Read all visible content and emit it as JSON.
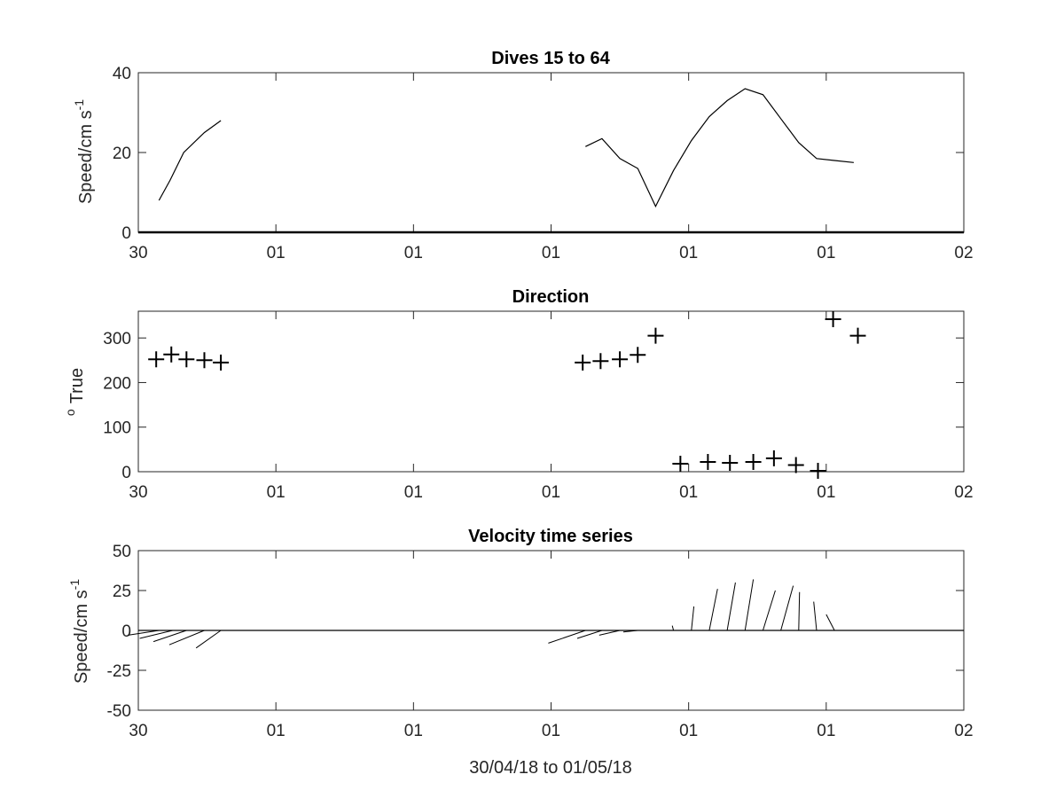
{
  "chart_data": [
    {
      "type": "line",
      "title": "Dives 15 to 64",
      "ylabel": "Speed/cm s",
      "ylabel_superscript": "-1",
      "xlabel": "",
      "ylim": [
        0,
        40
      ],
      "yticks": [
        0,
        20,
        40
      ],
      "xlim": [
        0,
        6
      ],
      "xticks": [
        0,
        1,
        2,
        3,
        4,
        5,
        6
      ],
      "xticklabels": [
        "30",
        "01",
        "01",
        "01",
        "01",
        "01",
        "02"
      ],
      "series": [
        {
          "x": [
            0.15,
            0.23,
            0.33,
            0.48,
            0.6
          ],
          "y": [
            8,
            13,
            20,
            25,
            28
          ]
        },
        {
          "x": [
            3.25,
            3.37,
            3.5,
            3.63,
            3.76,
            3.89,
            4.02,
            4.15,
            4.28,
            4.41,
            4.54,
            4.67,
            4.8,
            4.93,
            5.06,
            5.2
          ],
          "y": [
            21.5,
            23.5,
            18.5,
            16,
            6.5,
            15.5,
            23,
            29,
            33,
            36,
            34.5,
            28.5,
            22.5,
            18.5,
            18,
            17.5
          ]
        }
      ]
    },
    {
      "type": "scatter",
      "title": "Direction",
      "ylabel": "True",
      "ylabel_prefix_superscript": "o",
      "xlabel": "",
      "ylim": [
        0,
        360
      ],
      "yticks": [
        0,
        100,
        200,
        300
      ],
      "xlim": [
        0,
        6
      ],
      "xticks": [
        0,
        1,
        2,
        3,
        4,
        5,
        6
      ],
      "xticklabels": [
        "30",
        "01",
        "01",
        "01",
        "01",
        "01",
        "02"
      ],
      "marker": "+",
      "x": [
        0.13,
        0.24,
        0.35,
        0.48,
        0.6,
        3.23,
        3.36,
        3.5,
        3.63,
        3.76,
        3.94,
        4.14,
        4.3,
        4.47,
        4.62,
        4.78,
        4.94,
        5.05,
        5.23
      ],
      "y": [
        252,
        263,
        252,
        250,
        245,
        245,
        248,
        252,
        262,
        305,
        18,
        22,
        20,
        22,
        30,
        15,
        2,
        342,
        305
      ]
    },
    {
      "type": "line",
      "subtype": "stick",
      "title": "Velocity time series",
      "ylabel": "Speed/cm s",
      "ylabel_superscript": "-1",
      "xlabel": "30/04/18 to 01/05/18",
      "ylim": [
        -50,
        50
      ],
      "yticks": [
        -50,
        -25,
        0,
        25,
        50
      ],
      "xlim": [
        0,
        6
      ],
      "xticks": [
        0,
        1,
        2,
        3,
        4,
        5,
        6
      ],
      "xticklabels": [
        "30",
        "01",
        "01",
        "01",
        "01",
        "01",
        "02"
      ],
      "baseline": 0,
      "sticks": [
        {
          "x": 0.15,
          "u": -0.75,
          "v": -3
        },
        {
          "x": 0.25,
          "u": -0.8,
          "v": -5
        },
        {
          "x": 0.35,
          "u": -0.8,
          "v": -7
        },
        {
          "x": 0.48,
          "u": -0.85,
          "v": -9
        },
        {
          "x": 0.6,
          "u": -0.6,
          "v": -11
        },
        {
          "x": 3.25,
          "u": -0.9,
          "v": -8
        },
        {
          "x": 3.37,
          "u": -0.6,
          "v": -5
        },
        {
          "x": 3.5,
          "u": -0.5,
          "v": -3
        },
        {
          "x": 3.63,
          "u": -0.35,
          "v": -1
        },
        {
          "x": 3.76,
          "u": 0.05,
          "v": 0
        },
        {
          "x": 3.89,
          "u": -0.03,
          "v": 3
        },
        {
          "x": 4.02,
          "u": 0.06,
          "v": 15
        },
        {
          "x": 4.15,
          "u": 0.2,
          "v": 26
        },
        {
          "x": 4.28,
          "u": 0.2,
          "v": 30
        },
        {
          "x": 4.41,
          "u": 0.2,
          "v": 32
        },
        {
          "x": 4.54,
          "u": 0.3,
          "v": 25
        },
        {
          "x": 4.67,
          "u": 0.3,
          "v": 28
        },
        {
          "x": 4.8,
          "u": 0.02,
          "v": 24
        },
        {
          "x": 4.93,
          "u": -0.07,
          "v": 18
        },
        {
          "x": 5.06,
          "u": -0.2,
          "v": 10
        }
      ]
    }
  ]
}
